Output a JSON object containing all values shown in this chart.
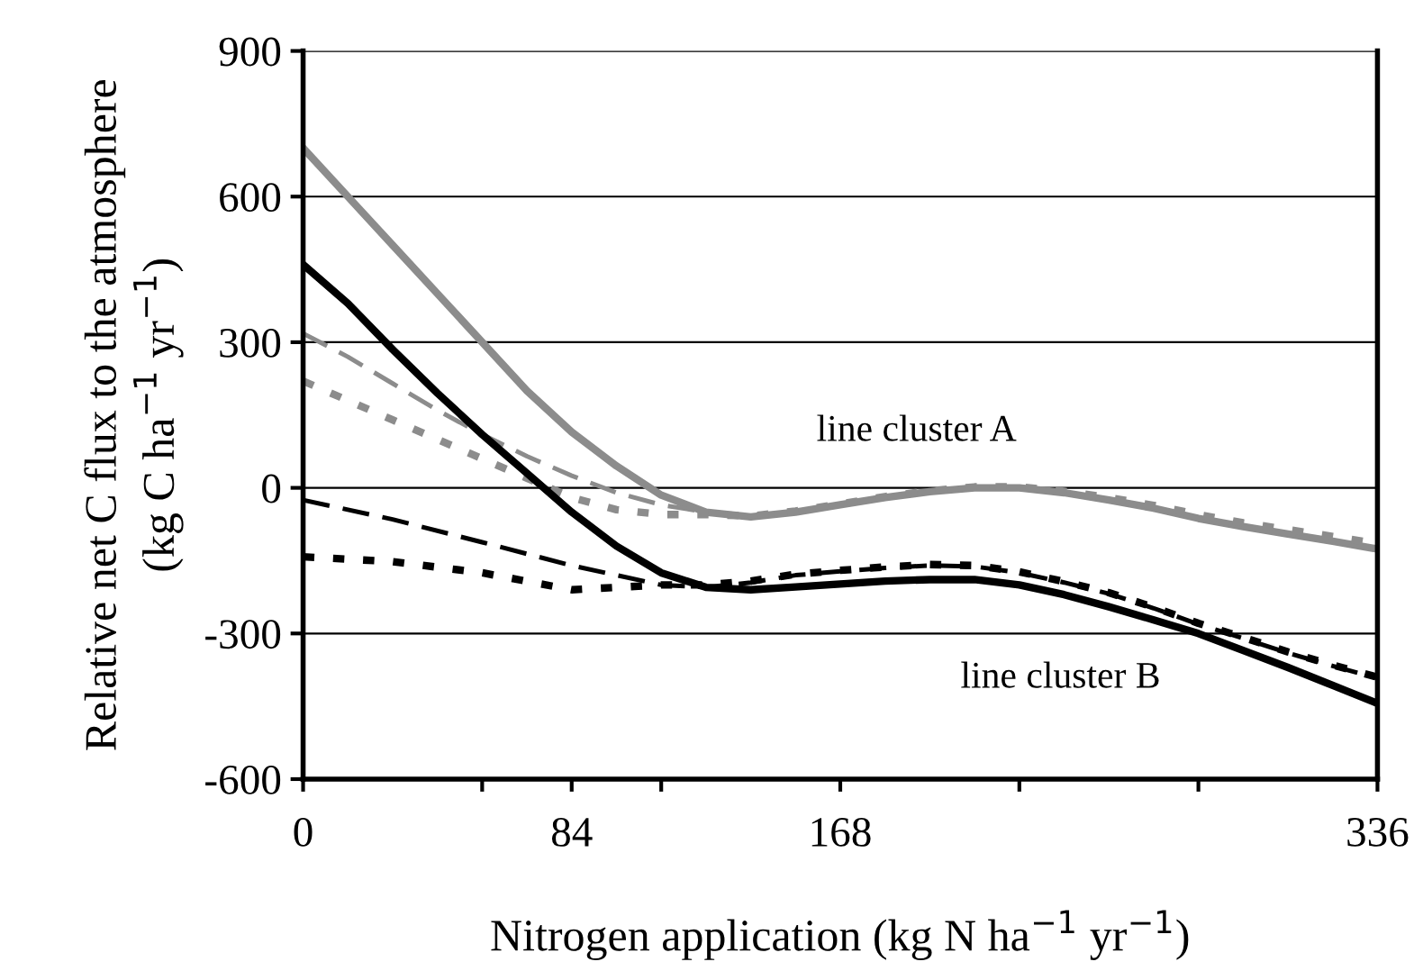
{
  "chart_data": {
    "type": "line",
    "xlabel": "Nitrogen application (kg N ha$^{−1}$ yr$^{−1}$)",
    "ylabel": "Relative net C flux to the atmosphere\n(kg C ha$^{−1}$ yr$^{−1}$)",
    "xlim": [
      0,
      336
    ],
    "ylim": [
      -600,
      900
    ],
    "xticks": [
      0,
      {
        "value": 56,
        "label": null
      },
      84,
      {
        "value": 112,
        "label": null
      },
      168,
      {
        "value": 224,
        "label": null
      },
      {
        "value": 280,
        "label": null
      },
      336
    ],
    "yticks": [
      -600,
      -300,
      0,
      300,
      600,
      900
    ],
    "grid": "y",
    "marker": "none",
    "annotations": [
      "line cluster A",
      "line cluster B"
    ],
    "series": [
      {
        "color": "#8c8c8c",
        "line_style": "solid",
        "x": [
          0,
          14,
          28,
          42,
          56,
          70,
          84,
          98,
          112,
          126,
          140,
          154,
          168,
          182,
          196,
          210,
          224,
          238,
          252,
          266,
          280,
          294,
          308,
          322,
          336
        ],
        "values": [
          700,
          600,
          500,
          400,
          300,
          200,
          115,
          45,
          -15,
          -50,
          -60,
          -50,
          -35,
          -20,
          -8,
          0,
          0,
          -10,
          -25,
          -42,
          -63,
          -80,
          -95,
          -110,
          -126
        ]
      },
      {
        "color": "#8c8c8c",
        "line_style": "dashed",
        "x": [
          0,
          14,
          28,
          42,
          56,
          70,
          84,
          98,
          112,
          126,
          140,
          154,
          168,
          182,
          196,
          210,
          224,
          238,
          252,
          266,
          280,
          294,
          308,
          322,
          336
        ],
        "values": [
          318,
          270,
          215,
          160,
          110,
          65,
          25,
          -10,
          -35,
          -50,
          -60,
          -50,
          -35,
          -20,
          -8,
          0,
          0,
          -10,
          -25,
          -42,
          -63,
          -80,
          -95,
          -110,
          -126
        ]
      },
      {
        "color": "#8c8c8c",
        "line_style": "dotted",
        "x": [
          0,
          14,
          28,
          42,
          56,
          70,
          84,
          98,
          112,
          126,
          140,
          154,
          168,
          182,
          196,
          210,
          224,
          238,
          252,
          266,
          280,
          294,
          308,
          322,
          336
        ],
        "values": [
          220,
          180,
          140,
          100,
          60,
          20,
          -20,
          -45,
          -55,
          -55,
          -58,
          -48,
          -33,
          -18,
          -6,
          2,
          2,
          -7,
          -20,
          -36,
          -55,
          -72,
          -86,
          -100,
          -115
        ]
      },
      {
        "color": "#000000",
        "line_style": "solid",
        "x": [
          0,
          14,
          28,
          42,
          56,
          70,
          84,
          98,
          112,
          126,
          140,
          154,
          168,
          182,
          196,
          210,
          224,
          238,
          252,
          266,
          280,
          294,
          308,
          322,
          336
        ],
        "values": [
          460,
          380,
          285,
          195,
          110,
          30,
          -50,
          -120,
          -175,
          -205,
          -210,
          -204,
          -198,
          -192,
          -189,
          -189,
          -200,
          -220,
          -245,
          -272,
          -300,
          -335,
          -370,
          -407,
          -444
        ]
      },
      {
        "color": "#000000",
        "line_style": "dashed",
        "x": [
          0,
          28,
          56,
          84,
          112,
          126,
          140,
          154,
          168,
          182,
          196,
          210,
          224,
          238,
          252,
          266,
          280,
          294,
          308,
          322,
          336
        ],
        "values": [
          -25,
          -65,
          -112,
          -160,
          -200,
          -205,
          -195,
          -180,
          -172,
          -165,
          -160,
          -162,
          -175,
          -195,
          -218,
          -248,
          -281,
          -310,
          -340,
          -367,
          -392
        ]
      },
      {
        "color": "#000000",
        "line_style": "dotted",
        "x": [
          0,
          28,
          56,
          84,
          98,
          112,
          126,
          140,
          154,
          168,
          182,
          196,
          210,
          224,
          238,
          252,
          266,
          280,
          294,
          308,
          322,
          336
        ],
        "values": [
          -142,
          -152,
          -175,
          -210,
          -205,
          -200,
          -200,
          -192,
          -178,
          -170,
          -163,
          -158,
          -160,
          -173,
          -193,
          -216,
          -246,
          -279,
          -308,
          -338,
          -365,
          -390
        ]
      }
    ]
  }
}
